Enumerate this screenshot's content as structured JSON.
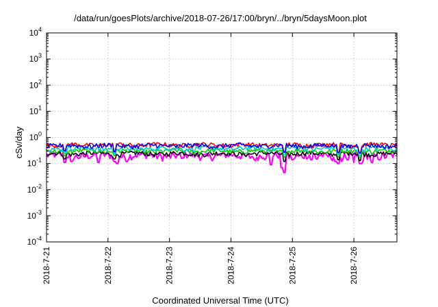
{
  "chart_data": {
    "type": "line",
    "title": "/data/run/goesPlots/archive/2018-07-26/17:00/bryn/../bryn/5daysMoon.plot",
    "xlabel": "Coordinated Universal Time (UTC)",
    "ylabel": "cSv/day",
    "yscale": "log",
    "ylim": [
      0.0001,
      10000
    ],
    "xlim": [
      0,
      5.7
    ],
    "x_tick_values": [
      0,
      1,
      2,
      3,
      4,
      5
    ],
    "x_tick_labels": [
      "2018-7-21",
      "2018-7-22",
      "2018-7-23",
      "2018-7-24",
      "2018-7-25",
      "2018-7-26"
    ],
    "y_ticks": [
      {
        "value": 0.0001,
        "base": "10",
        "exp": "-4"
      },
      {
        "value": 0.001,
        "base": "10",
        "exp": "-3"
      },
      {
        "value": 0.01,
        "base": "10",
        "exp": "-2"
      },
      {
        "value": 0.1,
        "base": "10",
        "exp": "-1"
      },
      {
        "value": 1,
        "base": "10",
        "exp": "0"
      },
      {
        "value": 10,
        "base": "10",
        "exp": "1"
      },
      {
        "value": 100,
        "base": "10",
        "exp": "2"
      },
      {
        "value": 1000,
        "base": "10",
        "exp": "3"
      },
      {
        "value": 10000,
        "base": "10",
        "exp": "4"
      }
    ],
    "grid": true,
    "legend": "none",
    "series": [
      {
        "color": "#ff00ff",
        "base": 0.2,
        "amp": 0.06,
        "dips": [
          [
            0.3,
            0.11
          ],
          [
            0.4,
            0.12
          ],
          [
            0.85,
            0.11
          ],
          [
            1.1,
            0.12
          ],
          [
            1.15,
            0.1
          ],
          [
            1.3,
            0.12
          ],
          [
            2.2,
            0.16
          ],
          [
            3.1,
            0.17
          ],
          [
            3.4,
            0.13
          ],
          [
            3.55,
            0.14
          ],
          [
            3.65,
            0.09
          ],
          [
            3.82,
            0.07
          ],
          [
            3.87,
            0.045
          ],
          [
            4.0,
            0.14
          ],
          [
            4.3,
            0.14
          ],
          [
            4.4,
            0.15
          ],
          [
            4.7,
            0.12
          ],
          [
            4.75,
            0.1
          ],
          [
            4.8,
            0.12
          ],
          [
            4.9,
            0.14
          ],
          [
            5.0,
            0.11
          ],
          [
            5.1,
            0.1
          ],
          [
            5.12,
            0.1
          ],
          [
            5.15,
            0.13
          ],
          [
            5.3,
            0.11
          ],
          [
            5.4,
            0.15
          ]
        ]
      },
      {
        "color": "#000000",
        "base": 0.24,
        "amp": 0.05,
        "dips": [
          [
            0.3,
            0.15
          ],
          [
            1.1,
            0.15
          ],
          [
            3.87,
            0.12
          ],
          [
            4.75,
            0.14
          ],
          [
            5.1,
            0.13
          ]
        ]
      },
      {
        "color": "#00cc00",
        "base": 0.3,
        "amp": 0.06,
        "dips": [
          [
            0.3,
            0.2
          ],
          [
            1.1,
            0.2
          ],
          [
            3.87,
            0.18
          ],
          [
            4.75,
            0.18
          ],
          [
            5.1,
            0.17
          ]
        ]
      },
      {
        "color": "#00c8c8",
        "base": 0.38,
        "amp": 0.08,
        "dips": [
          [
            0.3,
            0.25
          ],
          [
            1.1,
            0.24
          ],
          [
            3.87,
            0.22
          ],
          [
            4.75,
            0.22
          ],
          [
            5.1,
            0.2
          ]
        ]
      },
      {
        "color": "#ff0000",
        "base": 0.52,
        "amp": 0.1,
        "dips": [
          [
            0.3,
            0.32
          ],
          [
            1.1,
            0.3
          ],
          [
            3.87,
            0.28
          ],
          [
            4.75,
            0.27
          ],
          [
            5.1,
            0.26
          ]
        ]
      },
      {
        "color": "#0000ff",
        "base": 0.48,
        "amp": 0.1,
        "dips": [
          [
            0.3,
            0.3
          ],
          [
            1.1,
            0.28
          ],
          [
            3.87,
            0.27
          ],
          [
            4.75,
            0.26
          ],
          [
            5.1,
            0.25
          ]
        ]
      }
    ]
  }
}
